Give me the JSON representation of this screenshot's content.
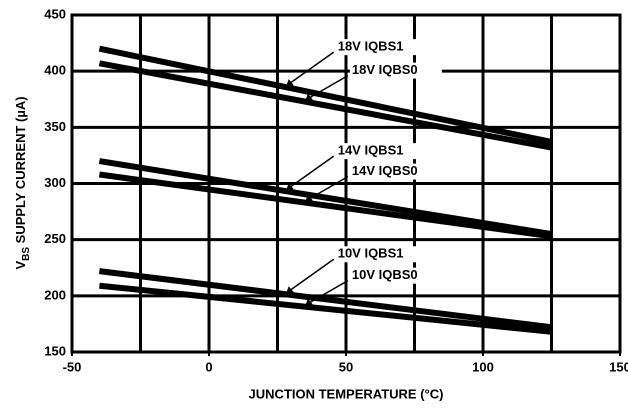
{
  "chart_data": {
    "type": "line",
    "ylabel_parts": [
      "V",
      "BS",
      " SUPPLY CURRENT (µA)"
    ],
    "xlabel": "JUNCTION TEMPERATURE (°C)",
    "xlim": [
      -50,
      150
    ],
    "xticks": [
      -50,
      0,
      50,
      100,
      150
    ],
    "x_grid_lines": [
      -25,
      0,
      25,
      50,
      75,
      100,
      125
    ],
    "ylim": [
      150,
      450
    ],
    "yticks": [
      150,
      200,
      250,
      300,
      350,
      400,
      450
    ],
    "grid": true,
    "x": [
      -40,
      125
    ],
    "series": [
      {
        "name": "18V IQBS1",
        "color": "#000000",
        "values": [
          420,
          337
        ]
      },
      {
        "name": "18V IQBS0",
        "color": "#000000",
        "values": [
          407,
          332
        ]
      },
      {
        "name": "14V IQBS1",
        "color": "#000000",
        "values": [
          320,
          255
        ]
      },
      {
        "name": "14V IQBS0",
        "color": "#000000",
        "values": [
          308,
          253
        ]
      },
      {
        "name": "10V IQBS1",
        "color": "#000000",
        "values": [
          222,
          172
        ]
      },
      {
        "name": "10V IQBS0",
        "color": "#000000",
        "values": [
          209,
          168
        ]
      }
    ]
  }
}
